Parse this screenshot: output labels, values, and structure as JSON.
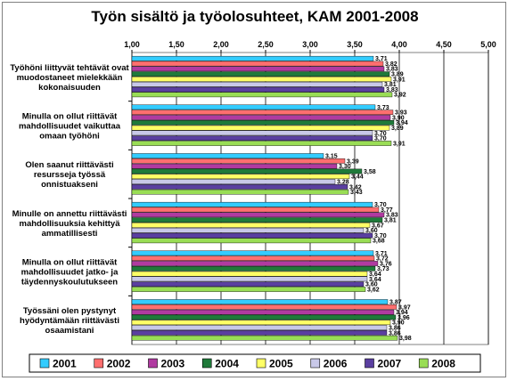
{
  "chart_data": {
    "type": "bar",
    "orientation": "horizontal",
    "title": "Työn sisältö ja työolosuhteet, KAM 2001-2008",
    "xlim": [
      1.0,
      5.0
    ],
    "xticks": [
      "1,00",
      "1,50",
      "2,00",
      "2,50",
      "3,00",
      "3,50",
      "4,00",
      "4,50",
      "5,00"
    ],
    "grid": "vertical",
    "legend_position": "bottom",
    "categories": [
      [
        "Työhöni liittyvät tehtävät ovat",
        "muodostaneet mielekkään",
        "kokonaisuuden"
      ],
      [
        "Minulla on ollut riittävät",
        "mahdollisuudet vaikuttaa",
        "omaan työhöni"
      ],
      [
        "Olen saanut riittävästi",
        "resursseja työssä",
        "onnistuakseni"
      ],
      [
        "Minulle on annettu riittävästi",
        "mahdollisuuksia kehittyä",
        "ammatillisesti"
      ],
      [
        "Minulla on ollut riittävät",
        "mahdollisuudet jatko- ja",
        "täydennyskoulutukseen"
      ],
      [
        "Työssäni olen pystynyt",
        "hyödyntämään riittävästi",
        "osaamistani"
      ]
    ],
    "series": [
      {
        "name": "2001",
        "color": "#33ccff",
        "values": [
          3.71,
          3.73,
          3.15,
          3.7,
          3.71,
          3.87
        ]
      },
      {
        "name": "2002",
        "color": "#ff6f6f",
        "values": [
          3.82,
          3.93,
          3.39,
          3.77,
          3.72,
          3.97
        ]
      },
      {
        "name": "2003",
        "color": "#b03aa0",
        "values": [
          3.83,
          3.9,
          3.3,
          3.83,
          3.76,
          3.94
        ]
      },
      {
        "name": "2004",
        "color": "#1f7a3a",
        "values": [
          3.89,
          3.94,
          3.58,
          3.81,
          3.73,
          3.96
        ]
      },
      {
        "name": "2005",
        "color": "#ffff66",
        "values": [
          3.91,
          3.89,
          3.44,
          3.67,
          3.64,
          3.9
        ]
      },
      {
        "name": "2006",
        "color": "#c8c8e8",
        "values": [
          3.81,
          3.7,
          3.28,
          3.6,
          3.64,
          3.86
        ]
      },
      {
        "name": "2007",
        "color": "#5a3fa0",
        "values": [
          3.83,
          3.7,
          3.42,
          3.7,
          3.6,
          3.86
        ]
      },
      {
        "name": "2008",
        "color": "#99dd55",
        "values": [
          3.92,
          3.91,
          3.43,
          3.68,
          3.62,
          3.98
        ]
      }
    ]
  }
}
